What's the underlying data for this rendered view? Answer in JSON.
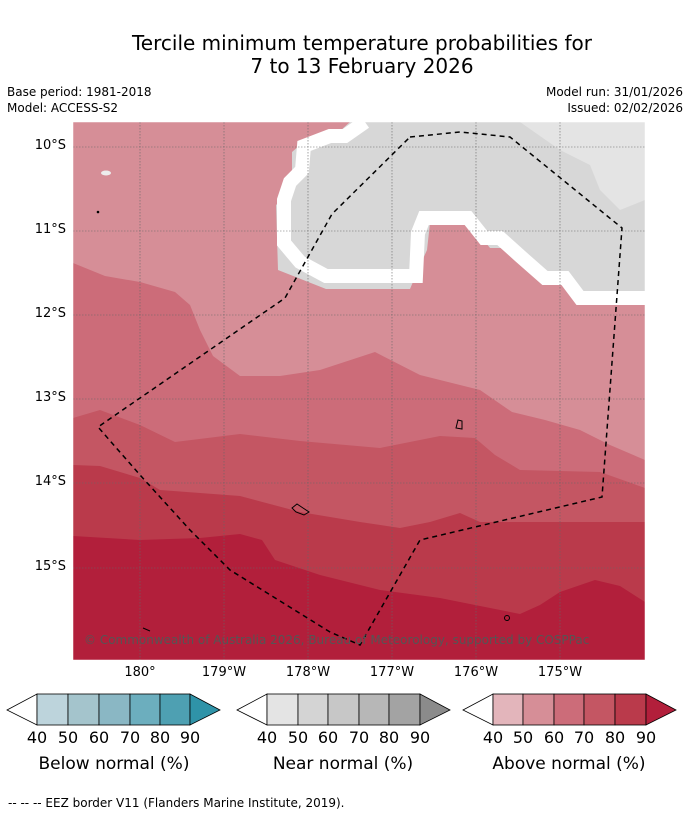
{
  "title": {
    "line1": "Tercile minimum temperature probabilities for",
    "line2": "7 to 13 February 2026"
  },
  "meta": {
    "base_period": "Base period: 1981-2018",
    "model": "Model: ACCESS-S2",
    "model_run": "Model run: 31/01/2026",
    "issued": "Issued: 02/02/2026"
  },
  "map": {
    "lat_labels": [
      "10°S",
      "11°S",
      "12°S",
      "13°S",
      "14°S",
      "15°S"
    ],
    "lon_labels": [
      "180°",
      "179°W",
      "178°W",
      "177°W",
      "176°W",
      "175°W"
    ],
    "credit": "© Commonwealth of Australia 2026, Bureau of Meteorology, supported by COSPPac",
    "colors": {
      "above_50": "#d68e97",
      "above_60": "#cc6c79",
      "above_70": "#c45663",
      "above_80": "#ba3a4b",
      "above_90": "#b21f3b",
      "near_40": "#d7d7d7",
      "near_30": "#e4e4e4"
    }
  },
  "colorbars": [
    {
      "name": "Below normal (%)",
      "ticks": [
        "40",
        "50",
        "60",
        "70",
        "80",
        "90"
      ],
      "colors": [
        "#bdd4dc",
        "#a4c4cc",
        "#8ab7c4",
        "#6caebe",
        "#4ea0b2",
        "#2f93a8"
      ]
    },
    {
      "name": "Near normal (%)",
      "ticks": [
        "40",
        "50",
        "60",
        "70",
        "80",
        "90"
      ],
      "colors": [
        "#e4e4e4",
        "#d4d4d4",
        "#c7c7c7",
        "#b7b7b7",
        "#a3a3a3",
        "#8b8b8b"
      ]
    },
    {
      "name": "Above normal (%)",
      "ticks": [
        "40",
        "50",
        "60",
        "70",
        "80",
        "90"
      ],
      "colors": [
        "#e3b5bb",
        "#d68e97",
        "#cc6c79",
        "#c45663",
        "#ba3a4b",
        "#b21f3b"
      ]
    }
  ],
  "footer": "--  --  -- EEZ border V11 (Flanders Marine Institute, 2019)."
}
